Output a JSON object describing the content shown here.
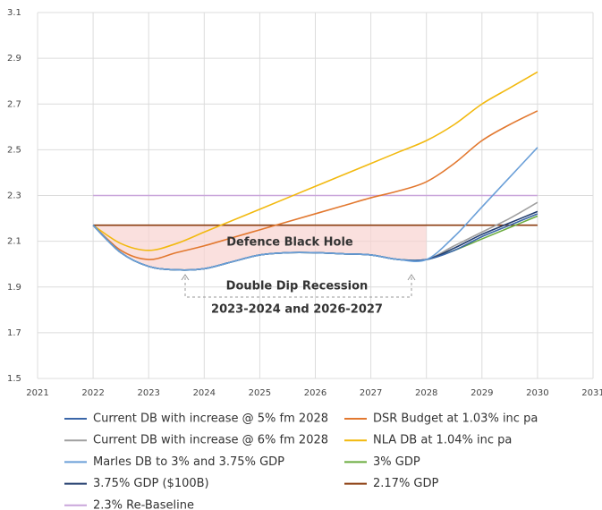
{
  "chart_data": {
    "type": "line",
    "annotations": [
      "Defence Black Hole",
      "Double Dip Recession",
      "2023-2024 and 2026-2027"
    ],
    "x": [
      2022,
      2022.5,
      2023,
      2023.5,
      2024,
      2024.5,
      2025,
      2025.5,
      2026,
      2026.5,
      2027,
      2027.5,
      2028,
      2028.5,
      2029,
      2029.5,
      2030
    ],
    "series": [
      {
        "name": "Current DB with increase @ 5% fm 2028",
        "color": "#3a66a8",
        "values": [
          2.17,
          2.05,
          1.99,
          1.975,
          1.98,
          2.01,
          2.04,
          2.05,
          2.05,
          2.045,
          2.04,
          2.02,
          2.02,
          2.06,
          2.12,
          2.17,
          2.22
        ]
      },
      {
        "name": "DSR Budget at 1.03% inc pa",
        "color": "#e2782f",
        "values": [
          2.17,
          2.06,
          2.02,
          2.05,
          2.08,
          2.115,
          2.15,
          2.185,
          2.22,
          2.255,
          2.29,
          2.32,
          2.36,
          2.44,
          2.54,
          2.61,
          2.67
        ]
      },
      {
        "name": "Current DB with increase @ 6% fm 2028",
        "color": "#a0a0a0",
        "values": [
          2.17,
          2.05,
          1.99,
          1.975,
          1.98,
          2.01,
          2.04,
          2.05,
          2.05,
          2.045,
          2.04,
          2.02,
          2.02,
          2.08,
          2.14,
          2.2,
          2.27
        ]
      },
      {
        "name": "NLA DB at 1.04% inc pa",
        "color": "#f2b90f",
        "values": [
          2.17,
          2.09,
          2.06,
          2.09,
          2.14,
          2.19,
          2.24,
          2.29,
          2.34,
          2.39,
          2.44,
          2.49,
          2.54,
          2.61,
          2.7,
          2.77,
          2.84
        ]
      },
      {
        "name": "Marles DB to 3% and 3.75% GDP",
        "color": "#6a9fd8",
        "values": [
          2.17,
          2.05,
          1.99,
          1.975,
          1.98,
          2.01,
          2.04,
          2.05,
          2.05,
          2.045,
          2.04,
          2.02,
          2.02,
          2.12,
          2.25,
          2.38,
          2.51
        ]
      },
      {
        "name": "3% GDP",
        "color": "#6aac3f",
        "values": [
          2.17,
          2.05,
          1.99,
          1.975,
          1.98,
          2.01,
          2.04,
          2.05,
          2.05,
          2.045,
          2.04,
          2.02,
          2.02,
          2.06,
          2.11,
          2.16,
          2.21
        ]
      },
      {
        "name": "3.75% GDP ($100B)",
        "color": "#233e6e",
        "values": [
          2.17,
          2.05,
          1.99,
          1.975,
          1.98,
          2.01,
          2.04,
          2.05,
          2.05,
          2.045,
          2.04,
          2.02,
          2.02,
          2.07,
          2.13,
          2.18,
          2.23
        ]
      },
      {
        "name": "2.17% GDP",
        "color": "#8b3d0f",
        "values": [
          2.17,
          2.17,
          2.17,
          2.17,
          2.17,
          2.17,
          2.17,
          2.17,
          2.17,
          2.17,
          2.17,
          2.17,
          2.17,
          2.17,
          2.17,
          2.17,
          2.17
        ]
      },
      {
        "name": "2.3% Re-Baseline",
        "color": "#c9a6db",
        "values": [
          2.3,
          2.3,
          2.3,
          2.3,
          2.3,
          2.3,
          2.3,
          2.3,
          2.3,
          2.3,
          2.3,
          2.3,
          2.3,
          2.3,
          2.3,
          2.3,
          2.3
        ]
      }
    ],
    "xlim": [
      2021,
      2031
    ],
    "xticks": [
      2021,
      2022,
      2023,
      2024,
      2025,
      2026,
      2027,
      2028,
      2029,
      2030,
      2031
    ],
    "ylim": [
      1.5,
      3.1
    ],
    "yticks": [
      1.5,
      1.7,
      1.9,
      2.1,
      2.3,
      2.5,
      2.7,
      2.9,
      3.1
    ],
    "grid": true
  }
}
